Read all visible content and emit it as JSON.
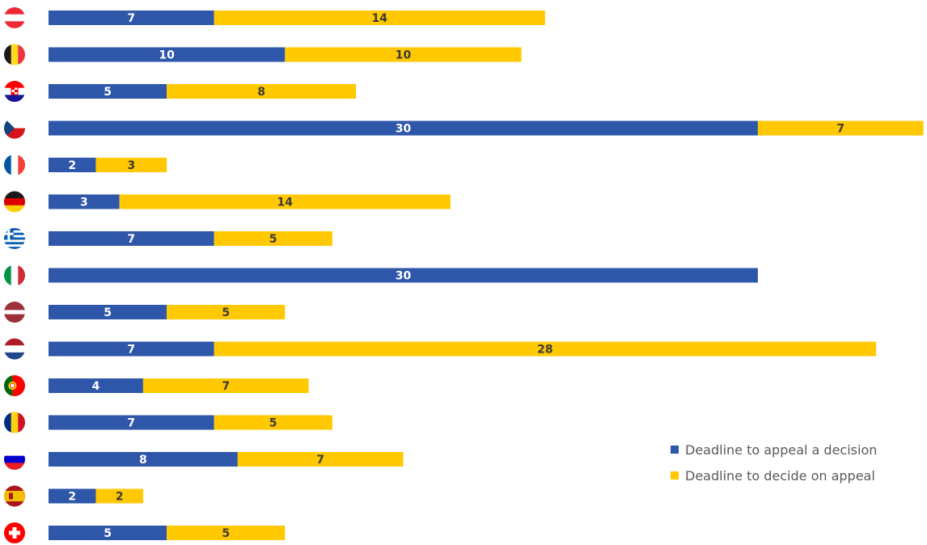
{
  "colors": {
    "appeal": "#2E56A9",
    "decide": "#FFC800",
    "label_on_blue": "#ffffff",
    "label_on_yellow": "#3a3a3a"
  },
  "legend": [
    {
      "label": "Deadline to appeal a decision",
      "color": "#2E56A9"
    },
    {
      "label": "Deadline to decide on appeal",
      "color": "#FFC800"
    }
  ],
  "flag_icons": [
    "austria-flag-icon",
    "belgium-flag-icon",
    "croatia-flag-icon",
    "czechia-flag-icon",
    "france-flag-icon",
    "germany-flag-icon",
    "greece-flag-icon",
    "italy-flag-icon",
    "latvia-flag-icon",
    "netherlands-flag-icon",
    "portugal-flag-icon",
    "romania-flag-icon",
    "slovenia-flag-icon",
    "spain-flag-icon",
    "switzerland-flag-icon"
  ],
  "chart_data": {
    "type": "bar",
    "orientation": "horizontal",
    "stacked": true,
    "categories": [
      "Austria",
      "Belgium",
      "Croatia",
      "Czechia",
      "France",
      "Germany",
      "Greece",
      "Italy",
      "Latvia",
      "Netherlands",
      "Portugal",
      "Romania",
      "Slovenia",
      "Spain",
      "Switzerland"
    ],
    "series": [
      {
        "name": "Deadline to appeal a decision",
        "values": [
          7,
          10,
          5,
          30,
          2,
          3,
          7,
          30,
          5,
          7,
          4,
          7,
          8,
          2,
          5
        ]
      },
      {
        "name": "Deadline to decide on appeal",
        "values": [
          14,
          10,
          8,
          7,
          3,
          14,
          5,
          null,
          5,
          28,
          7,
          5,
          7,
          2,
          5
        ]
      }
    ],
    "xlim": [
      0,
      37
    ],
    "grid": false,
    "legend_position": "right"
  }
}
